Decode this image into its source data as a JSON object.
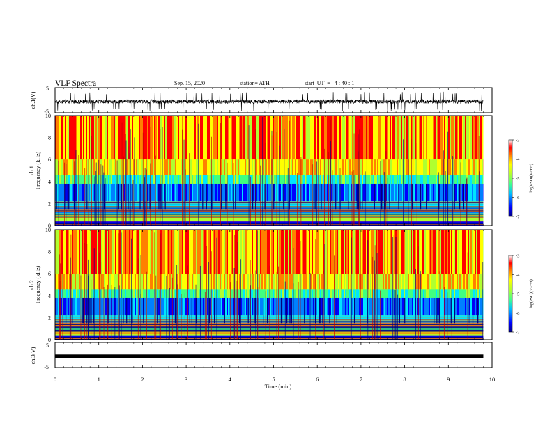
{
  "header": {
    "title": "VLF Spectra",
    "date": "Sep. 15, 2020",
    "station": "station= ATH",
    "start": "start  UT  =   4 : 40 : 1"
  },
  "colors": {
    "palette": [
      "#00007f",
      "#0000ff",
      "#0080ff",
      "#00e5ff",
      "#40ff80",
      "#b0ff30",
      "#ffff00",
      "#ff8000",
      "#ff0000",
      "#c00000"
    ]
  },
  "chart_data": [
    {
      "type": "line",
      "panel": "ch1-waveform",
      "ylabel": "ch.1(V)",
      "ylim": [
        -5,
        5
      ],
      "yticks": [
        "5",
        "-5"
      ],
      "xlim": [
        0,
        10
      ],
      "note_values": "noisy waveform centred near -0.5 V, roughly within -2.5 to 1 V, recorded 0 to 9.8 min"
    },
    {
      "type": "heatmap",
      "panel": "ch1-spectrogram",
      "ylabel_line1": "ch.1",
      "ylabel_line2": "Frequency (kHz)",
      "ylim": [
        0,
        10
      ],
      "yticks": [
        "0",
        "2",
        "4",
        "6",
        "8",
        "10"
      ],
      "xlim": [
        0,
        10
      ],
      "colorbar": {
        "label": "log(PSD)(V²/Hz)",
        "range": [
          -7,
          -3
        ],
        "ticks": [
          "-3",
          "-4",
          "-5",
          "-6",
          "-7"
        ]
      }
    },
    {
      "type": "heatmap",
      "panel": "ch2-spectrogram",
      "ylabel_line1": "ch.2",
      "ylabel_line2": "Frequency (kHz)",
      "ylim": [
        0,
        10
      ],
      "yticks": [
        "0",
        "2",
        "4",
        "6",
        "8",
        "10"
      ],
      "xlim": [
        0,
        10
      ],
      "colorbar": {
        "label": "log(PSD)(V²/Hz)",
        "range": [
          -7,
          -3
        ],
        "ticks": [
          "-3",
          "-4",
          "-5",
          "-6",
          "-7"
        ]
      }
    },
    {
      "type": "line",
      "panel": "ch3-waveform",
      "ylabel": "ch.3(V)",
      "ylim": [
        -5,
        5
      ],
      "yticks": [
        "5",
        "-5"
      ],
      "xlim": [
        0,
        10
      ],
      "xlabel": "Time (min)",
      "xticks": [
        "0",
        "1",
        "2",
        "3",
        "4",
        "5",
        "6",
        "7",
        "8",
        "9",
        "10"
      ],
      "note_values": "nearly constant about -0.5 V, thick band, recorded 0 to 9.8 min"
    }
  ]
}
